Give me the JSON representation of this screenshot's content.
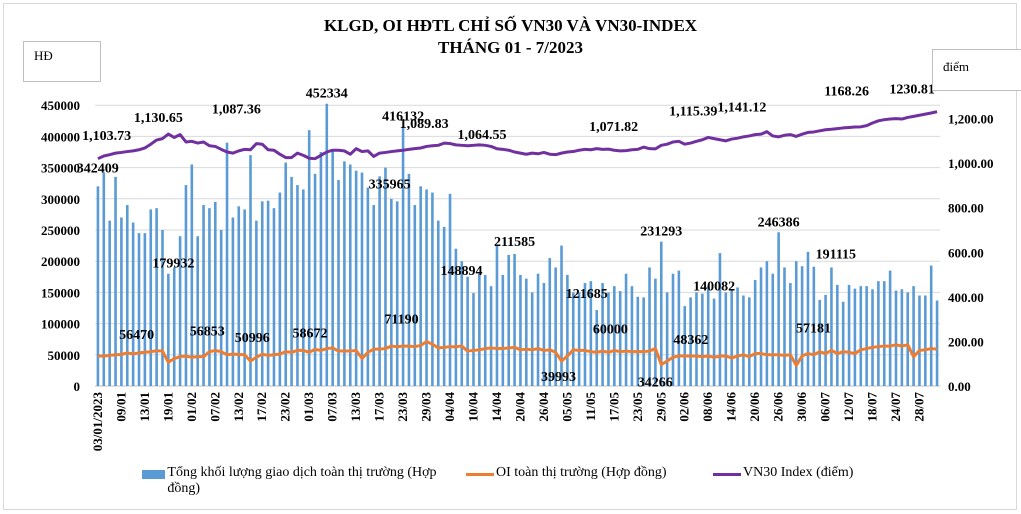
{
  "chart_data": {
    "type": "bar+line",
    "title": "KLGD, OI HĐTL CHỈ SỐ VN30 VÀ VN30-INDEX",
    "subtitle": "THÁNG 01 - 7/2023",
    "ylabel": "HĐ",
    "y2label": "điểm",
    "ylim": [
      0,
      500000
    ],
    "y2lim": [
      0,
      1400
    ],
    "yticks": [
      "0",
      "50000",
      "100000",
      "150000",
      "200000",
      "250000",
      "300000",
      "350000",
      "400000",
      "450000"
    ],
    "y2ticks": [
      "0.00",
      "200.00",
      "400.00",
      "600.00",
      "800.00",
      "1,000.00",
      "1,200.00"
    ],
    "grid": true,
    "legend_position": "bottom",
    "x_tick_labels": [
      "03/01/2023",
      "09/01",
      "13/01",
      "19/01",
      "01/02",
      "07/02",
      "13/02",
      "17/02",
      "23/02",
      "01/03",
      "07/03",
      "13/03",
      "17/03",
      "23/03",
      "29/03",
      "04/04",
      "10/04",
      "14/04",
      "20/04",
      "26/04",
      "05/05",
      "11/05",
      "17/05",
      "23/05",
      "29/05",
      "02/06",
      "08/06",
      "14/06",
      "20/06",
      "26/06",
      "30/06",
      "06/07",
      "12/07",
      "18/07",
      "24/07",
      "28/07"
    ],
    "series": [
      {
        "name": "Tổng khối lượng giao dịch toàn thị trường (Hợp đồng)",
        "type": "bar",
        "axis": "left",
        "color": "#5b9bd5",
        "values": [
          320000,
          342409,
          265000,
          335000,
          270000,
          290000,
          262000,
          245000,
          245000,
          283000,
          285000,
          250000,
          179932,
          190000,
          240000,
          322000,
          355000,
          240000,
          290000,
          285000,
          295000,
          250000,
          390000,
          270000,
          288000,
          283000,
          370000,
          265000,
          296000,
          297000,
          285000,
          310000,
          358000,
          335000,
          322000,
          315000,
          410000,
          340000,
          375000,
          452334,
          376000,
          330000,
          360000,
          355000,
          345000,
          342000,
          318000,
          290000,
          335965,
          350000,
          300000,
          296000,
          416132,
          340000,
          290000,
          320000,
          315000,
          310000,
          265000,
          255000,
          308000,
          220000,
          200000,
          175000,
          148894,
          180000,
          178000,
          160000,
          225000,
          178000,
          210000,
          211585,
          178000,
          172000,
          150000,
          180000,
          165000,
          205000,
          190000,
          225000,
          178000,
          150000,
          150000,
          165000,
          168000,
          121685,
          165000,
          150000,
          160000,
          152000,
          180000,
          160000,
          143000,
          142000,
          190000,
          172000,
          231293,
          150000,
          180000,
          185000,
          128000,
          142000,
          150000,
          148000,
          160000,
          140082,
          213000,
          150000,
          155000,
          158000,
          145000,
          142000,
          170000,
          190000,
          200000,
          180000,
          246386,
          190000,
          165000,
          200000,
          192000,
          215000,
          191115,
          138000,
          146000,
          190000,
          162000,
          135000,
          162000,
          156000,
          160000,
          160000,
          155000,
          168000,
          168000,
          185000,
          153000,
          155000,
          150000,
          160000,
          145000,
          145000,
          193000,
          137000
        ],
        "labels": [
          [
            1,
            "342409"
          ],
          [
            12,
            "179932"
          ],
          [
            39,
            "452334"
          ],
          [
            48,
            "335965"
          ],
          [
            52,
            "416132"
          ],
          [
            64,
            "148894"
          ],
          [
            71,
            "211585"
          ],
          [
            85,
            "121685"
          ],
          [
            96,
            "231293"
          ],
          [
            105,
            "140082"
          ],
          [
            116,
            "246386"
          ],
          [
            122,
            "191115"
          ]
        ]
      },
      {
        "name": "OI toàn thị trường (Hợp đồng)",
        "type": "line",
        "axis": "left",
        "color": "#ed7d31",
        "values": [
          48000,
          48000,
          49000,
          50000,
          50500,
          53000,
          51500,
          53000,
          54000,
          55000,
          56470,
          56000,
          38000,
          44000,
          47000,
          48000,
          46000,
          47000,
          47000,
          55000,
          56853,
          55000,
          50000,
          51000,
          50500,
          50000,
          40000,
          46000,
          50996,
          49000,
          50000,
          51000,
          55000,
          54000,
          57000,
          57000,
          54000,
          58672,
          57000,
          60000,
          61000,
          56000,
          56000,
          56000,
          57000,
          44000,
          54000,
          59000,
          59000,
          60000,
          64000,
          63000,
          64000,
          64000,
          63000,
          65000,
          71190,
          67000,
          61000,
          62000,
          63000,
          63000,
          64000,
          56000,
          57000,
          58000,
          60000,
          61000,
          60000,
          60000,
          61000,
          62000,
          58000,
          59000,
          58000,
          60000,
          57000,
          58000,
          54000,
          39993,
          48000,
          58000,
          57000,
          57000,
          55000,
          54000,
          56000,
          54000,
          57000,
          55000,
          56000,
          55000,
          55000,
          55000,
          56000,
          60000,
          34266,
          40000,
          46000,
          48362,
          48000,
          48000,
          48000,
          47000,
          48000,
          46000,
          48000,
          48000,
          45000,
          48000,
          50000,
          47000,
          52000,
          52000,
          50000,
          50000,
          50000,
          49000,
          50000,
          33000,
          48000,
          52000,
          50000,
          55000,
          52000,
          57181,
          52000,
          55000,
          54000,
          52000,
          58000,
          60000,
          62000,
          63000,
          64000,
          64000,
          66000,
          64000,
          66000,
          47000,
          57000,
          58000,
          60000,
          59000
        ],
        "labels": [
          [
            10,
            "56470"
          ],
          [
            20,
            "56853"
          ],
          [
            28,
            "50996"
          ],
          [
            37,
            "58672"
          ],
          [
            56,
            "71190"
          ],
          [
            79,
            "39993"
          ],
          [
            95,
            "60000"
          ],
          [
            96,
            "34266"
          ],
          [
            99,
            "48362"
          ],
          [
            125,
            "57181"
          ]
        ]
      },
      {
        "name": "VN30 Index (điểm)",
        "type": "line",
        "axis": "right",
        "color": "#7030a0",
        "values": [
          1020,
          1032,
          1038,
          1045,
          1048,
          1052,
          1055,
          1060,
          1068,
          1085,
          1103.73,
          1110,
          1130.65,
          1115,
          1128,
          1095,
          1098,
          1090,
          1095,
          1078,
          1075,
          1062,
          1050,
          1045,
          1055,
          1062,
          1060,
          1087.36,
          1085,
          1060,
          1058,
          1040,
          1025,
          1025,
          1045,
          1035,
          1022,
          1020,
          1035,
          1050,
          1058,
          1058,
          1055,
          1040,
          1065,
          1052,
          1055,
          1030,
          1045,
          1048,
          1052,
          1055,
          1058,
          1062,
          1065,
          1068,
          1075,
          1078,
          1080,
          1089.83,
          1088,
          1082,
          1080,
          1078,
          1080,
          1082,
          1080,
          1075,
          1064.55,
          1062,
          1058,
          1050,
          1045,
          1040,
          1045,
          1042,
          1048,
          1040,
          1038,
          1045,
          1050,
          1052,
          1058,
          1062,
          1060,
          1065,
          1062,
          1063,
          1058,
          1055,
          1056,
          1060,
          1062,
          1071.82,
          1065,
          1064,
          1080,
          1085,
          1095,
          1098,
          1085,
          1090,
          1098,
          1105,
          1115.39,
          1110,
          1105,
          1100,
          1108,
          1112,
          1118,
          1122,
          1128,
          1130,
          1141.12,
          1122,
          1118,
          1125,
          1128,
          1120,
          1130,
          1138,
          1140,
          1145,
          1150,
          1152,
          1155,
          1158,
          1160,
          1162,
          1163,
          1168.26,
          1180,
          1190,
          1195,
          1198,
          1200,
          1198,
          1205,
          1210,
          1215,
          1220,
          1225,
          1230.81
        ],
        "labels": [
          [
            10,
            "1,103.73"
          ],
          [
            12,
            "1,130.65"
          ],
          [
            27,
            "1,087.36"
          ],
          [
            59,
            "1,089.83"
          ],
          [
            68,
            "1,064.55"
          ],
          [
            93,
            "1,071.82"
          ],
          [
            104,
            "1,115.39"
          ],
          [
            114,
            "1,141.12"
          ],
          [
            131,
            "1168.26"
          ],
          [
            143,
            "1230.81"
          ]
        ]
      }
    ]
  }
}
